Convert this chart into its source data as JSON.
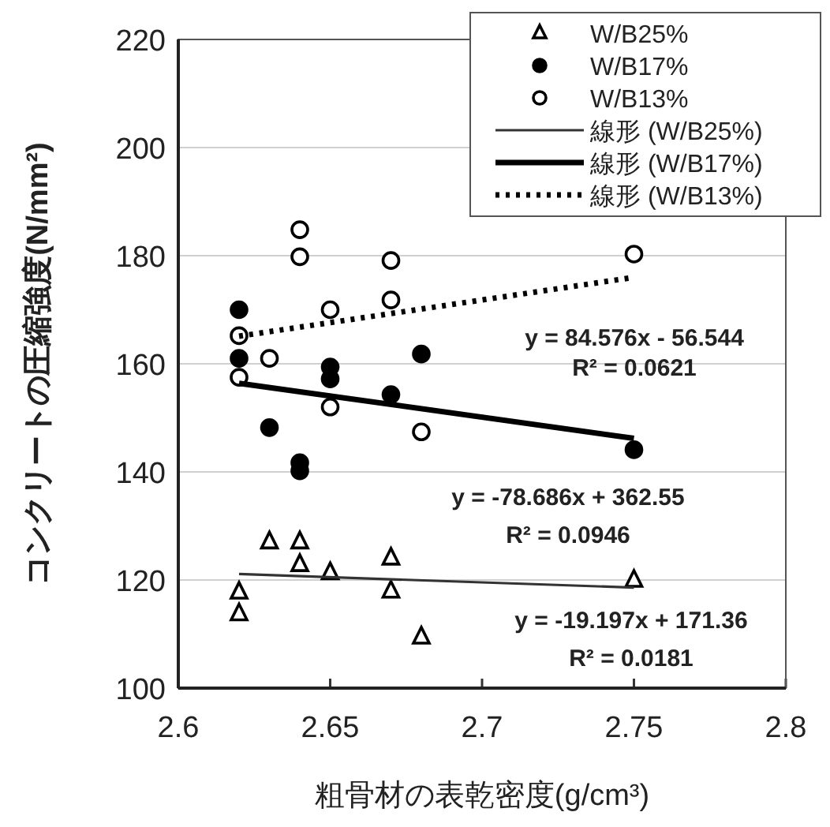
{
  "chart_data": {
    "type": "scatter",
    "xlabel": "粗骨材の表乾密度(g/cm³)",
    "ylabel": "コンクリートの圧縮強度(N/mm²)",
    "xlim": [
      2.6,
      2.8
    ],
    "xticks": [
      2.6,
      2.65,
      2.7,
      2.75,
      2.8
    ],
    "ylim": [
      100,
      220
    ],
    "yticks": [
      100,
      120,
      140,
      160,
      180,
      200,
      220
    ],
    "grid": "y",
    "legend": "top right",
    "series": [
      {
        "name": "W/B25%",
        "type": "scatter",
        "marker": "triangle",
        "color": "#ffffff",
        "x": [
          2.62,
          2.62,
          2.63,
          2.64,
          2.64,
          2.65,
          2.67,
          2.67,
          2.68,
          2.75
        ],
        "values": [
          117.8,
          113.8,
          127.1,
          127.1,
          122.9,
          121.4,
          124.1,
          118,
          109.5,
          120
        ]
      },
      {
        "name": "W/B17%",
        "type": "scatter",
        "marker": "circle",
        "color": "#000000",
        "x": [
          2.62,
          2.62,
          2.63,
          2.64,
          2.64,
          2.65,
          2.65,
          2.67,
          2.68,
          2.75
        ],
        "values": [
          170,
          161,
          148.2,
          141.7,
          140.2,
          159.4,
          157.2,
          154.3,
          161.8,
          144.1
        ]
      },
      {
        "name": "W/B13%",
        "type": "scatter",
        "marker": "circle",
        "color": "#ffffff",
        "x": [
          2.62,
          2.62,
          2.63,
          2.64,
          2.64,
          2.65,
          2.65,
          2.67,
          2.67,
          2.68,
          2.75
        ],
        "values": [
          165.2,
          157.5,
          161,
          184.8,
          179.8,
          170,
          152,
          179.1,
          171.8,
          147.4,
          180.3
        ]
      },
      {
        "name": "線形 (W/B25%)",
        "type": "line",
        "line_style": "solid",
        "color": "#333333",
        "x": [
          2.62,
          2.75
        ],
        "values": [
          121.1,
          118.6
        ]
      },
      {
        "name": "線形 (W/B17%)",
        "type": "line",
        "line_style": "solid",
        "color": "#000000",
        "x": [
          2.62,
          2.75
        ],
        "values": [
          156.4,
          146.2
        ]
      },
      {
        "name": "線形 (W/B13%)",
        "type": "line",
        "line_style": "dotted",
        "color": "#000000",
        "x": [
          2.62,
          2.75
        ],
        "values": [
          165.1,
          176.0
        ]
      }
    ],
    "annotations": [
      "y = 84.576x - 56.544",
      "R² = 0.0621",
      "y = -78.686x + 362.55",
      "R² = 0.0946",
      "y = -19.197x + 171.36",
      "R² = 0.0181"
    ]
  }
}
